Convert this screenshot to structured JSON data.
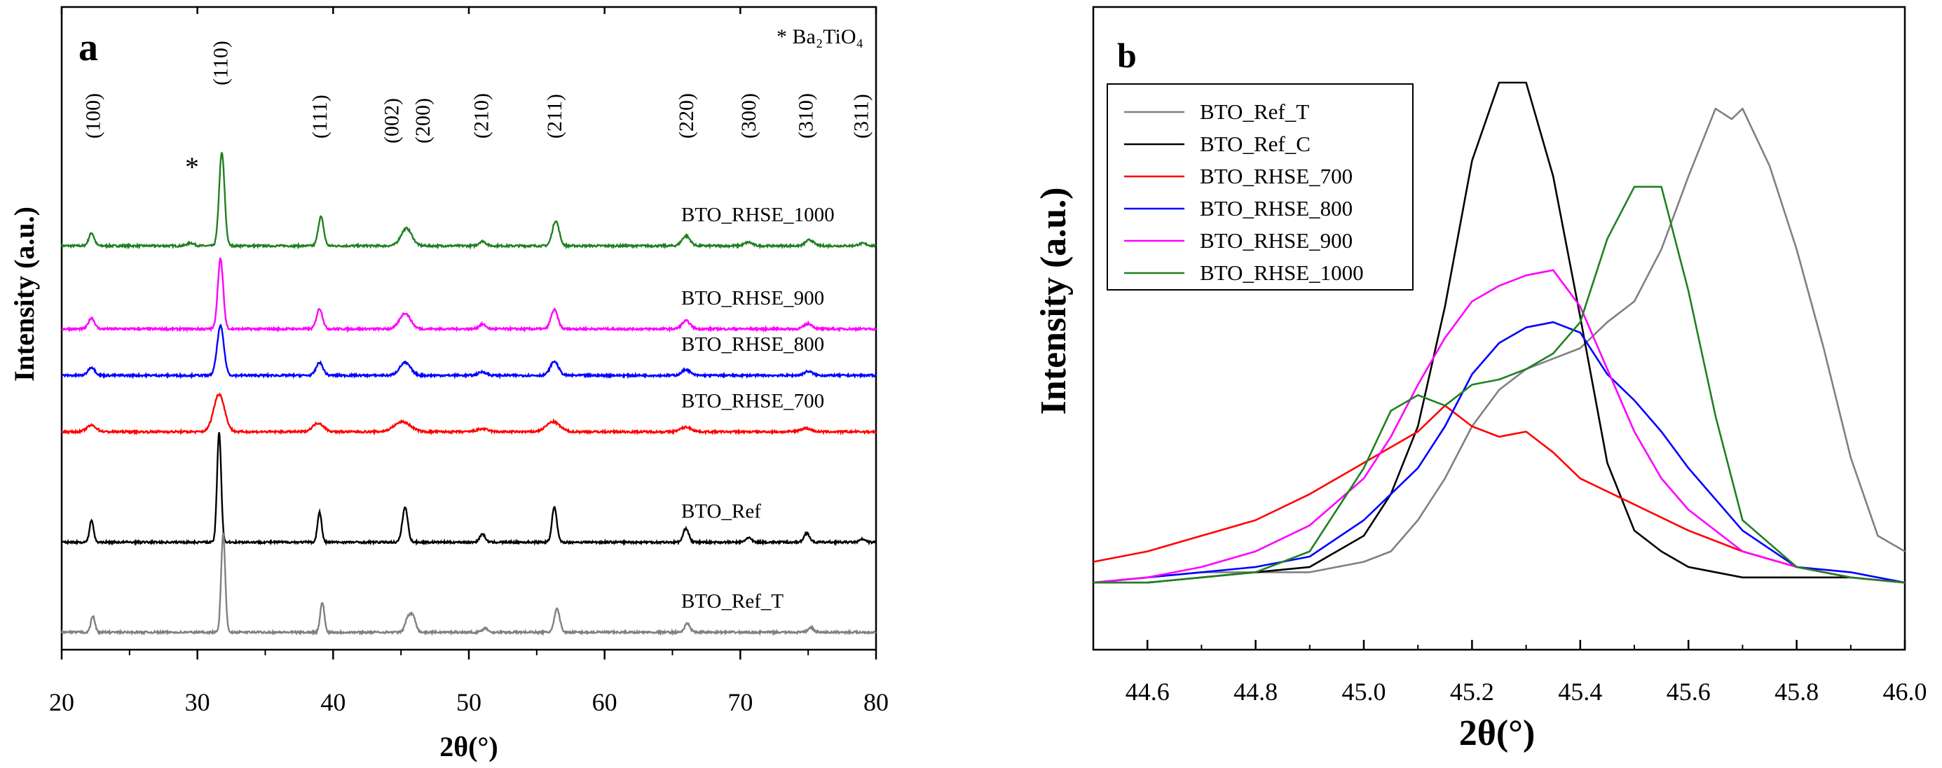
{
  "figure": "X-ray diffraction patterns",
  "chart_data": [
    {
      "type": "line",
      "panel": "a",
      "title": "",
      "xlabel": "2θ(°)",
      "ylabel": "Intensity (a.u.)",
      "xlim": [
        20,
        80
      ],
      "xticks": [
        20,
        30,
        40,
        50,
        60,
        70,
        80
      ],
      "y_ticks_shown": false,
      "annotation": "* Ba₂TiO₄",
      "impurity_marker": {
        "symbol": "*",
        "x": 29.5
      },
      "peak_labels": [
        {
          "label": "(100)",
          "x": 22.3
        },
        {
          "label": "(110)",
          "x": 31.7
        },
        {
          "label": "(111)",
          "x": 39.0
        },
        {
          "label": "(002)",
          "x": 45.0
        },
        {
          "label": "(200)",
          "x": 46.5
        },
        {
          "label": "(210)",
          "x": 50.9
        },
        {
          "label": "(211)",
          "x": 56.3
        },
        {
          "label": "(220)",
          "x": 66.0
        },
        {
          "label": "(300)",
          "x": 70.6
        },
        {
          "label": "(310)",
          "x": 74.8
        },
        {
          "label": "(311)",
          "x": 78.9
        }
      ],
      "series": [
        {
          "name": "BTO_RHSE_1000",
          "color": "#208020",
          "offset": 6.95,
          "peaks": [
            [
              22.2,
              0.22,
              0.2
            ],
            [
              29.5,
              0.05,
              0.25
            ],
            [
              31.8,
              1.6,
              0.2
            ],
            [
              39.1,
              0.5,
              0.2
            ],
            [
              45.4,
              0.3,
              0.4
            ],
            [
              51.0,
              0.08,
              0.25
            ],
            [
              56.4,
              0.43,
              0.25
            ],
            [
              66.0,
              0.17,
              0.3
            ],
            [
              70.6,
              0.06,
              0.3
            ],
            [
              75.1,
              0.1,
              0.3
            ],
            [
              79.0,
              0.04,
              0.3
            ]
          ]
        },
        {
          "name": "BTO_RHSE_900",
          "color": "#ff00ff",
          "offset": 5.52,
          "peaks": [
            [
              22.2,
              0.19,
              0.22
            ],
            [
              31.7,
              1.2,
              0.2
            ],
            [
              39.0,
              0.35,
              0.22
            ],
            [
              45.3,
              0.27,
              0.4
            ],
            [
              51.0,
              0.08,
              0.25
            ],
            [
              56.3,
              0.33,
              0.25
            ],
            [
              66.0,
              0.14,
              0.3
            ],
            [
              75.0,
              0.09,
              0.3
            ]
          ]
        },
        {
          "name": "BTO_RHSE_800",
          "color": "#0000ff",
          "offset": 4.72,
          "peaks": [
            [
              22.2,
              0.14,
              0.25
            ],
            [
              31.7,
              0.85,
              0.25
            ],
            [
              39.0,
              0.22,
              0.25
            ],
            [
              45.3,
              0.22,
              0.4
            ],
            [
              51.0,
              0.06,
              0.3
            ],
            [
              56.3,
              0.24,
              0.3
            ],
            [
              66.0,
              0.1,
              0.3
            ],
            [
              75.0,
              0.07,
              0.3
            ]
          ]
        },
        {
          "name": "BTO_RHSE_700",
          "color": "#ff0000",
          "offset": 3.75,
          "peaks": [
            [
              22.2,
              0.11,
              0.35
            ],
            [
              31.6,
              0.65,
              0.4
            ],
            [
              38.9,
              0.15,
              0.4
            ],
            [
              45.1,
              0.17,
              0.6
            ],
            [
              51.0,
              0.05,
              0.4
            ],
            [
              56.2,
              0.17,
              0.5
            ],
            [
              66.0,
              0.08,
              0.4
            ],
            [
              74.8,
              0.06,
              0.4
            ]
          ]
        },
        {
          "name": "BTO_Ref",
          "color": "#000000",
          "offset": 1.85,
          "peaks": [
            [
              22.2,
              0.38,
              0.15
            ],
            [
              31.6,
              1.9,
              0.15
            ],
            [
              39.0,
              0.52,
              0.15
            ],
            [
              45.3,
              0.6,
              0.2
            ],
            [
              51.0,
              0.14,
              0.2
            ],
            [
              56.3,
              0.6,
              0.18
            ],
            [
              66.0,
              0.24,
              0.2
            ],
            [
              70.6,
              0.08,
              0.2
            ],
            [
              74.9,
              0.16,
              0.2
            ],
            [
              79.0,
              0.05,
              0.2
            ]
          ]
        },
        {
          "name": "BTO_Ref_T",
          "color": "#808080",
          "offset": 0.3,
          "peaks": [
            [
              22.3,
              0.28,
              0.15
            ],
            [
              31.9,
              1.7,
              0.15
            ],
            [
              39.2,
              0.52,
              0.15
            ],
            [
              45.5,
              0.24,
              0.2
            ],
            [
              45.9,
              0.27,
              0.2
            ],
            [
              51.2,
              0.07,
              0.2
            ],
            [
              56.5,
              0.4,
              0.2
            ],
            [
              66.1,
              0.15,
              0.2
            ],
            [
              75.2,
              0.08,
              0.2
            ]
          ]
        }
      ]
    },
    {
      "type": "line",
      "panel": "b",
      "title": "",
      "xlabel": "2θ(°)",
      "ylabel": "Intensity (a.u.)",
      "xlim": [
        44.5,
        46.0
      ],
      "xticks": [
        "44.6",
        "44.8",
        "45.0",
        "45.2",
        "45.4",
        "45.6",
        "45.8",
        "46.0"
      ],
      "y_ticks_shown": false,
      "legend_position": "top-left",
      "series": [
        {
          "name": "BTO_Ref_T",
          "color": "#808080",
          "x": [
            44.5,
            44.6,
            44.7,
            44.8,
            44.9,
            45.0,
            45.05,
            45.1,
            45.15,
            45.2,
            45.25,
            45.3,
            45.35,
            45.4,
            45.45,
            45.5,
            45.55,
            45.6,
            45.65,
            45.68,
            45.7,
            45.75,
            45.8,
            45.85,
            45.9,
            45.95,
            46.0
          ],
          "y": [
            0.04,
            0.05,
            0.06,
            0.06,
            0.06,
            0.08,
            0.1,
            0.16,
            0.24,
            0.34,
            0.41,
            0.45,
            0.47,
            0.49,
            0.54,
            0.58,
            0.68,
            0.82,
            0.95,
            0.93,
            0.95,
            0.84,
            0.68,
            0.49,
            0.28,
            0.13,
            0.1
          ]
        },
        {
          "name": "BTO_Ref_C",
          "color": "#000000",
          "x": [
            44.5,
            44.6,
            44.7,
            44.8,
            44.9,
            45.0,
            45.05,
            45.1,
            45.15,
            45.2,
            45.25,
            45.3,
            45.35,
            45.4,
            45.45,
            45.5,
            45.55,
            45.6,
            45.7,
            45.8,
            45.9,
            46.0
          ],
          "y": [
            0.04,
            0.04,
            0.05,
            0.06,
            0.07,
            0.13,
            0.21,
            0.34,
            0.57,
            0.85,
            1.0,
            1.0,
            0.82,
            0.55,
            0.27,
            0.14,
            0.1,
            0.07,
            0.05,
            0.05,
            0.05,
            0.04
          ]
        },
        {
          "name": "BTO_RHSE_700",
          "color": "#ff0000",
          "x": [
            44.5,
            44.6,
            44.7,
            44.8,
            44.9,
            45.0,
            45.05,
            45.1,
            45.15,
            45.2,
            45.25,
            45.3,
            45.35,
            45.4,
            45.5,
            45.6,
            45.7,
            45.8,
            45.9,
            46.0
          ],
          "y": [
            0.08,
            0.1,
            0.13,
            0.16,
            0.21,
            0.27,
            0.3,
            0.33,
            0.38,
            0.34,
            0.32,
            0.33,
            0.29,
            0.24,
            0.19,
            0.14,
            0.1,
            0.07,
            0.05,
            0.04
          ]
        },
        {
          "name": "BTO_RHSE_800",
          "color": "#0000ff",
          "x": [
            44.5,
            44.6,
            44.7,
            44.8,
            44.9,
            45.0,
            45.05,
            45.1,
            45.15,
            45.2,
            45.25,
            45.3,
            45.35,
            45.4,
            45.45,
            45.5,
            45.55,
            45.6,
            45.7,
            45.8,
            45.9,
            46.0
          ],
          "y": [
            0.04,
            0.05,
            0.06,
            0.07,
            0.09,
            0.16,
            0.21,
            0.26,
            0.34,
            0.44,
            0.5,
            0.53,
            0.54,
            0.52,
            0.44,
            0.39,
            0.33,
            0.26,
            0.14,
            0.07,
            0.06,
            0.04
          ]
        },
        {
          "name": "BTO_RHSE_900",
          "color": "#ff00ff",
          "x": [
            44.5,
            44.6,
            44.7,
            44.8,
            44.9,
            45.0,
            45.05,
            45.1,
            45.15,
            45.2,
            45.25,
            45.3,
            45.35,
            45.4,
            45.45,
            45.5,
            45.55,
            45.6,
            45.7,
            45.8,
            45.9,
            46.0
          ],
          "y": [
            0.04,
            0.05,
            0.07,
            0.1,
            0.15,
            0.24,
            0.32,
            0.42,
            0.51,
            0.58,
            0.61,
            0.63,
            0.64,
            0.57,
            0.45,
            0.33,
            0.24,
            0.18,
            0.1,
            0.07,
            0.05,
            0.04
          ]
        },
        {
          "name": "BTO_RHSE_1000",
          "color": "#208020",
          "x": [
            44.5,
            44.6,
            44.7,
            44.8,
            44.9,
            45.0,
            45.05,
            45.1,
            45.15,
            45.2,
            45.25,
            45.3,
            45.35,
            45.4,
            45.45,
            45.5,
            45.55,
            45.6,
            45.65,
            45.7,
            45.8,
            45.9,
            46.0
          ],
          "y": [
            0.04,
            0.04,
            0.05,
            0.06,
            0.1,
            0.26,
            0.37,
            0.4,
            0.38,
            0.42,
            0.43,
            0.45,
            0.48,
            0.54,
            0.7,
            0.8,
            0.8,
            0.6,
            0.36,
            0.16,
            0.07,
            0.05,
            0.04
          ]
        }
      ]
    }
  ]
}
